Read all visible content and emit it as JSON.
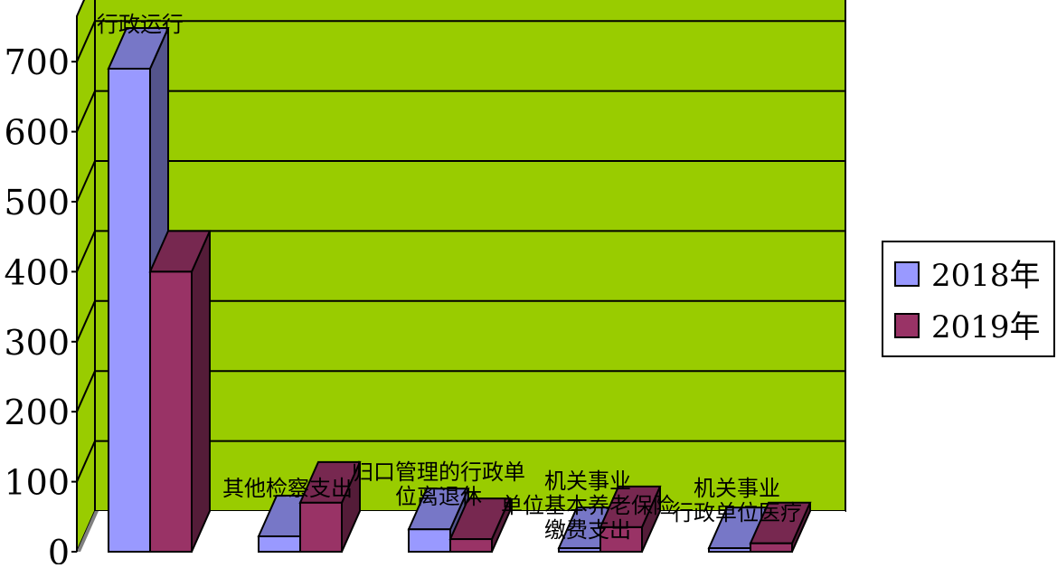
{
  "chart_data": {
    "type": "bar",
    "categories": [
      "行政运行",
      "其他检察支出",
      "归口管理的行政单位离退休",
      "机关事业单位基本养老保险缴费支出",
      "机关事业单位医疗"
    ],
    "category_labels": [
      [
        "行政运行"
      ],
      [
        "其他检察支出"
      ],
      [
        "归口管理的行政单",
        "位离退休"
      ],
      [
        "机关事业",
        "单位基本养老保险",
        "缴费支出"
      ],
      [
        "机关事业",
        "行政单位医疗"
      ]
    ],
    "series": [
      {
        "name": "2018年",
        "values": [
          690,
          22,
          32,
          5,
          5
        ],
        "color": "#9999ff"
      },
      {
        "name": "2019年",
        "values": [
          400,
          70,
          18,
          35,
          12
        ],
        "color": "#993366"
      }
    ],
    "y_ticks": [
      "0",
      "100",
      "200",
      "300",
      "400",
      "500",
      "600",
      "700"
    ],
    "ylim": [
      0,
      700
    ],
    "legend_position": "right",
    "wall_color": "#99cc00",
    "floor_color": "#ffffff"
  }
}
